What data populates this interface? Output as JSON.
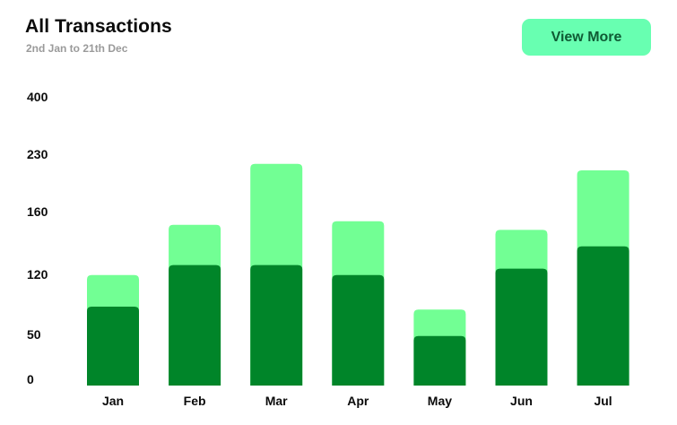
{
  "header": {
    "title": "All Transactions",
    "subtitle": "2nd Jan to 21th Dec",
    "button_label": "View More"
  },
  "colors": {
    "bar_top": "#72ff94",
    "bar_bottom": "#008529",
    "button_bg": "#68ffb1",
    "button_text": "#0f5a34"
  },
  "chart_data": {
    "type": "bar",
    "stacked": true,
    "categories": [
      "Jan",
      "Feb",
      "Mar",
      "Apr",
      "May",
      "Jun",
      "Jul"
    ],
    "y_ticks": [
      "0",
      "50",
      "120",
      "160",
      "230",
      "400"
    ],
    "series": [
      {
        "values": [
          110,
          168,
          168,
          154,
          69,
          163,
          194
        ]
      },
      {
        "values": [
          44,
          56,
          141,
          75,
          37,
          54,
          106
        ]
      }
    ],
    "grid": false,
    "legend": "none"
  }
}
